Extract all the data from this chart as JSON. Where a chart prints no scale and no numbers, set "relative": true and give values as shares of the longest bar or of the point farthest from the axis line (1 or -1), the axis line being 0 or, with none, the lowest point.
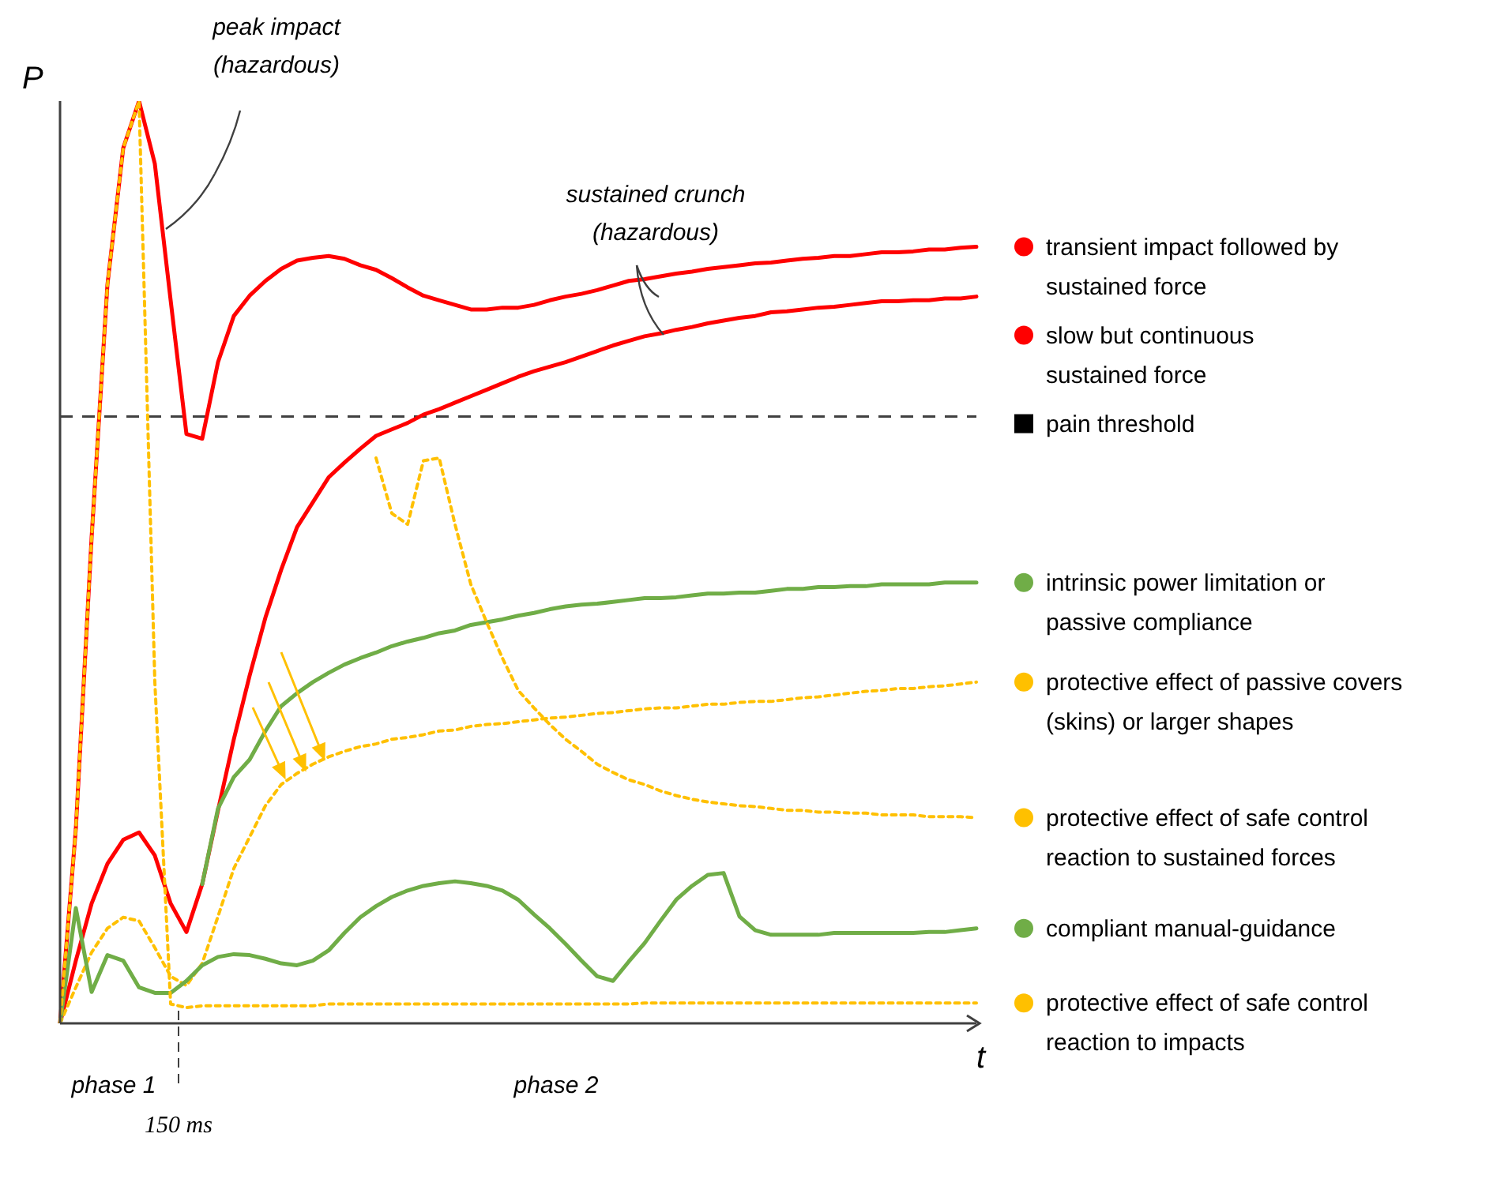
{
  "chart_data": {
    "type": "line",
    "relative": true,
    "xlabel": "t",
    "ylabel": "P",
    "legend": "right",
    "annotations": [
      "peak impact\n(hazardous)",
      "sustained  crunch\n(hazardous)",
      "phase 1",
      "phase 2",
      "150 ms"
    ],
    "categories": [
      null,
      null,
      null,
      null,
      null,
      null,
      null,
      null,
      null,
      null,
      null,
      null,
      null,
      null,
      null,
      null,
      null,
      null,
      null,
      null,
      null,
      null,
      null,
      null,
      null,
      null,
      null,
      null,
      null,
      null,
      null,
      null,
      null,
      null,
      null,
      null,
      null,
      null,
      null,
      null,
      null,
      null,
      null,
      null,
      null,
      null,
      null,
      null,
      null,
      null,
      null,
      null,
      null,
      null,
      null,
      null,
      null,
      null,
      null
    ],
    "ref_lines": [
      {
        "axis": "y",
        "value": 0.658,
        "label": "pain threshold",
        "color": "#404040",
        "line_style": "dashed"
      }
    ],
    "series": [
      {
        "name": "transient impact followed by\nsustained force",
        "color": "#ff0000",
        "line_style": "solid",
        "values": [
          0,
          0.211,
          0.527,
          0.801,
          0.949,
          1,
          0.932,
          0.784,
          0.639,
          0.634,
          0.717,
          0.767,
          0.789,
          0.805,
          0.818,
          0.827,
          0.83,
          0.832,
          0.829,
          0.822,
          0.817,
          0.808,
          0.798,
          0.789,
          0.784,
          0.779,
          0.774,
          0.774,
          0.776,
          0.776,
          0.779,
          0.784,
          0.788,
          0.791,
          0.795,
          0.8,
          0.805,
          0.807,
          0.81,
          0.813,
          0.815,
          0.818,
          0.82,
          0.822,
          0.824,
          0.825,
          0.827,
          0.829,
          0.83,
          0.832,
          0.832,
          0.834,
          0.836,
          0.836,
          0.837,
          0.839,
          0.839,
          0.841,
          0.842
        ]
      },
      {
        "name": "slow but continuous\nsustained force",
        "color": "#ff0000",
        "line_style": "solid",
        "values": [
          0,
          0.068,
          0.13,
          0.173,
          0.199,
          0.207,
          0.182,
          0.13,
          0.099,
          0.151,
          0.231,
          0.308,
          0.377,
          0.44,
          0.492,
          0.538,
          0.565,
          0.592,
          0.608,
          0.623,
          0.637,
          0.644,
          0.651,
          0.66,
          0.666,
          0.673,
          0.68,
          0.687,
          0.694,
          0.701,
          0.707,
          0.712,
          0.717,
          0.723,
          0.729,
          0.735,
          0.74,
          0.745,
          0.748,
          0.752,
          0.755,
          0.759,
          0.762,
          0.765,
          0.767,
          0.771,
          0.772,
          0.774,
          0.776,
          0.777,
          0.779,
          0.781,
          0.783,
          0.783,
          0.784,
          0.784,
          0.786,
          0.786,
          0.788
        ]
      },
      {
        "name": "intrinsic power limitation or\npassive compliance",
        "color": "#70ad47",
        "line_style": "solid",
        "values": [
          null,
          null,
          null,
          null,
          null,
          null,
          null,
          null,
          null,
          0.151,
          0.233,
          0.267,
          0.286,
          0.317,
          0.344,
          0.358,
          0.37,
          0.38,
          0.389,
          0.396,
          0.402,
          0.409,
          0.414,
          0.418,
          0.423,
          0.426,
          0.432,
          0.435,
          0.438,
          0.442,
          0.445,
          0.449,
          0.452,
          0.454,
          0.455,
          0.457,
          0.459,
          0.461,
          0.461,
          0.462,
          0.464,
          0.466,
          0.466,
          0.467,
          0.467,
          0.469,
          0.471,
          0.471,
          0.473,
          0.473,
          0.474,
          0.474,
          0.476,
          0.476,
          0.476,
          0.476,
          0.478,
          0.478,
          0.478
        ]
      },
      {
        "name": "protective effect of passive covers\n(skins) or larger shapes",
        "color": "#ffc000",
        "line_style": "dotted",
        "values": [
          0,
          0.039,
          0.077,
          0.103,
          0.115,
          0.111,
          0.082,
          0.051,
          0.041,
          0.065,
          0.116,
          0.168,
          0.202,
          0.236,
          0.259,
          0.271,
          0.281,
          0.289,
          0.295,
          0.3,
          0.303,
          0.308,
          0.31,
          0.313,
          0.317,
          0.318,
          0.322,
          0.324,
          0.325,
          0.327,
          0.329,
          0.331,
          0.332,
          0.334,
          0.336,
          0.337,
          0.339,
          0.341,
          0.342,
          0.342,
          0.344,
          0.346,
          0.346,
          0.348,
          0.349,
          0.349,
          0.351,
          0.353,
          0.354,
          0.356,
          0.358,
          0.36,
          0.361,
          0.363,
          0.363,
          0.365,
          0.366,
          0.368,
          0.37
        ]
      },
      {
        "name": "protective effect of safe control\nreaction to sustained forces",
        "color": "#ffc000",
        "line_style": "dotted",
        "values": [
          null,
          null,
          null,
          null,
          null,
          null,
          null,
          null,
          null,
          null,
          null,
          null,
          null,
          null,
          null,
          null,
          null,
          null,
          null,
          null,
          0.613,
          0.553,
          0.541,
          0.61,
          0.613,
          0.541,
          0.476,
          0.435,
          0.396,
          0.361,
          0.342,
          0.324,
          0.308,
          0.295,
          0.281,
          0.272,
          0.264,
          0.259,
          0.252,
          0.247,
          0.243,
          0.24,
          0.238,
          0.236,
          0.235,
          0.233,
          0.231,
          0.231,
          0.229,
          0.229,
          0.228,
          0.228,
          0.226,
          0.226,
          0.226,
          0.224,
          0.224,
          0.224,
          0.223
        ]
      },
      {
        "name": "compliant manual-guidance",
        "color": "#70ad47",
        "line_style": "solid",
        "values": [
          0,
          0.125,
          0.034,
          0.074,
          0.068,
          0.039,
          0.033,
          0.033,
          0.046,
          0.063,
          0.072,
          0.075,
          0.074,
          0.07,
          0.065,
          0.063,
          0.068,
          0.079,
          0.098,
          0.115,
          0.127,
          0.137,
          0.144,
          0.149,
          0.152,
          0.154,
          0.152,
          0.149,
          0.144,
          0.134,
          0.118,
          0.103,
          0.086,
          0.068,
          0.051,
          0.046,
          0.067,
          0.087,
          0.111,
          0.134,
          0.149,
          0.161,
          0.163,
          0.116,
          0.101,
          0.096,
          0.096,
          0.096,
          0.096,
          0.098,
          0.098,
          0.098,
          0.098,
          0.098,
          0.098,
          0.099,
          0.099,
          0.101,
          0.103
        ]
      },
      {
        "name": "protective effect of safe control\nreaction to impacts",
        "color": "#ffc000",
        "line_style": "dotted",
        "values": [
          0,
          0.211,
          0.527,
          0.801,
          0.949,
          1,
          0.37,
          0.021,
          0.017,
          0.019,
          0.019,
          0.019,
          0.019,
          0.019,
          0.019,
          0.019,
          0.019,
          0.021,
          0.021,
          0.021,
          0.021,
          0.021,
          0.021,
          0.021,
          0.021,
          0.021,
          0.021,
          0.021,
          0.021,
          0.021,
          0.021,
          0.021,
          0.021,
          0.021,
          0.021,
          0.021,
          0.021,
          0.022,
          0.022,
          0.022,
          0.022,
          0.022,
          0.022,
          0.022,
          0.022,
          0.022,
          0.022,
          0.022,
          0.022,
          0.022,
          0.022,
          0.022,
          0.022,
          0.022,
          0.022,
          0.022,
          0.022,
          0.022,
          0.022
        ]
      }
    ]
  }
}
